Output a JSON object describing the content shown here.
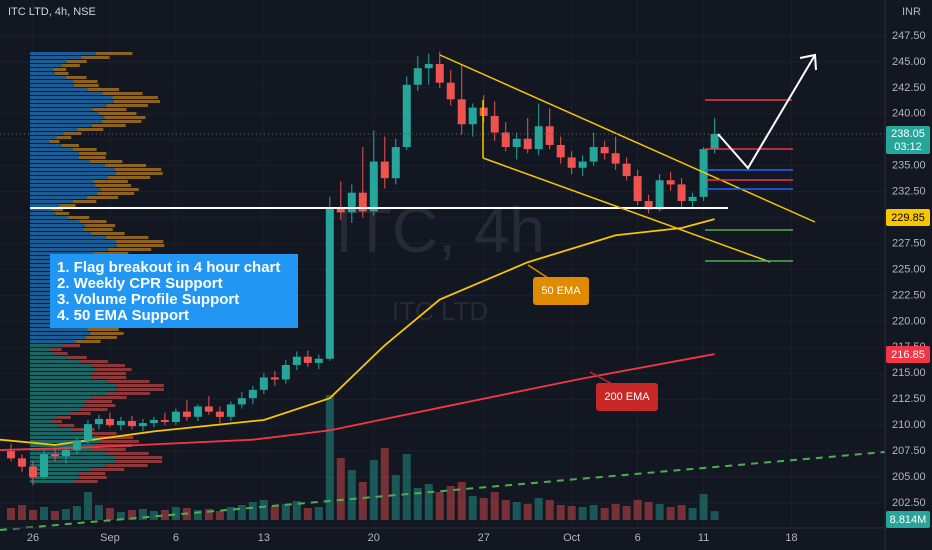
{
  "chart_data": {
    "type": "candlestick",
    "title": "ITC LTD, 4h, NSE",
    "currency": "INR",
    "watermark": "ITC, 4h",
    "watermark_sub": "ITC LTD",
    "annotations": [
      "1. Flag breakout in 4 hour chart",
      "2. Weekly CPR Support",
      "3. Volume Profile Support",
      "4. 50 EMA Support"
    ],
    "countdown": "03:12",
    "up_color": "#26a69a",
    "down_color": "#ef5350",
    "x": [
      0,
      1,
      2,
      3,
      4,
      5,
      6,
      7,
      8,
      9,
      10,
      11,
      12,
      13,
      14,
      15,
      16,
      17,
      18,
      19,
      20,
      21,
      22,
      23,
      24,
      25,
      26,
      27,
      28,
      29,
      30,
      31,
      32,
      33,
      34,
      35,
      36,
      37,
      38,
      39,
      40,
      41,
      42,
      43,
      44,
      45,
      46,
      47,
      48,
      49,
      50,
      51,
      52,
      53,
      54,
      55,
      56,
      57,
      58,
      59,
      60,
      61,
      62,
      63,
      64
    ],
    "open": [
      207.5,
      206.8,
      206,
      205,
      207.2,
      207,
      207.6,
      208.5,
      210.1,
      210.6,
      210,
      210.4,
      209.9,
      210.2,
      210.5,
      210.3,
      211.3,
      210.8,
      211.8,
      211.3,
      210.8,
      212,
      212.6,
      213.4,
      214.6,
      214.4,
      215.8,
      216.6,
      216,
      216.4,
      231,
      230.5,
      232.4,
      230.6,
      235.4,
      233.8,
      236.8,
      242.8,
      244.4,
      244.8,
      243,
      241.4,
      239,
      240.6,
      239.8,
      238.2,
      236.8,
      237.6,
      236.6,
      238.8,
      237,
      235.8,
      234.8,
      235.4,
      236.8,
      236.2,
      235.2,
      234,
      231.6,
      230.8,
      233.6,
      233.2,
      231.6,
      232,
      236.6
    ],
    "high": [
      208.2,
      207.2,
      206.5,
      207.6,
      207.8,
      207.9,
      208.8,
      210.5,
      211,
      211.2,
      210.8,
      210.9,
      210.6,
      210.8,
      211.2,
      211.6,
      212.4,
      212,
      212.8,
      211.8,
      212.3,
      213.2,
      213.8,
      215,
      215.2,
      216.3,
      217.1,
      217.2,
      216.8,
      232,
      233.5,
      233.2,
      236.8,
      238.4,
      237.8,
      237.6,
      243.6,
      245.6,
      245.8,
      246,
      244.2,
      244.8,
      241,
      241.8,
      241.2,
      239.2,
      238.2,
      239.6,
      241,
      240.5,
      237.8,
      236.4,
      236,
      238.2,
      237.4,
      237.8,
      235.8,
      234.6,
      232.2,
      234.2,
      234.4,
      233.8,
      232.4,
      236.8,
      239.6
    ],
    "low": [
      206.5,
      205.5,
      204.2,
      204.8,
      206.5,
      206.3,
      207.2,
      208.2,
      209.6,
      209.8,
      209.5,
      209.6,
      209.4,
      209.8,
      210,
      210,
      210.4,
      210.4,
      211,
      210.2,
      210.4,
      211.6,
      212,
      213,
      213.8,
      214,
      215.3,
      215.6,
      215.4,
      216.2,
      229.8,
      229.5,
      230,
      230.2,
      232.8,
      233.2,
      236.5,
      242.2,
      242.8,
      242.5,
      240.8,
      238,
      237.8,
      239.2,
      237.4,
      236.4,
      235.6,
      236.2,
      236,
      236.6,
      235.2,
      234.2,
      234,
      235,
      235.6,
      234.6,
      233.6,
      231.2,
      230.4,
      230.6,
      232.6,
      231,
      230.8,
      231.6,
      236.2
    ],
    "close": [
      206.8,
      206,
      205,
      207.2,
      207,
      207.6,
      208.5,
      210.1,
      210.6,
      210,
      210.4,
      209.9,
      210.2,
      210.5,
      210.3,
      211.3,
      210.8,
      211.8,
      211.3,
      210.8,
      212,
      212.6,
      213.4,
      214.6,
      214.4,
      215.8,
      216.6,
      216,
      216.4,
      231,
      230.5,
      232.4,
      230.6,
      235.4,
      233.8,
      236.8,
      242.8,
      244.4,
      244.8,
      243,
      241.4,
      239,
      240.6,
      239.8,
      238.2,
      236.8,
      237.6,
      236.6,
      238.8,
      237,
      235.8,
      234.8,
      235.4,
      236.8,
      236.2,
      235.2,
      234,
      231.6,
      230.8,
      233.6,
      233.2,
      231.6,
      232,
      236.6,
      238.05
    ],
    "volume": [
      12,
      15,
      10,
      13,
      9,
      11,
      14,
      28,
      15,
      12,
      8,
      10,
      11,
      9,
      10,
      13,
      12,
      10,
      11,
      9,
      13,
      15,
      18,
      20,
      14,
      16,
      19,
      12,
      13,
      125,
      62,
      50,
      38,
      60,
      72,
      45,
      66,
      32,
      36,
      28,
      34,
      38,
      24,
      22,
      28,
      20,
      18,
      16,
      22,
      20,
      15,
      14,
      13,
      15,
      12,
      16,
      14,
      20,
      18,
      16,
      13,
      15,
      12,
      26,
      8.814
    ],
    "volume_label": "8.814M",
    "series": [
      {
        "name": "50 EMA",
        "color": "#f7c600",
        "x": [
          -1,
          4,
          13,
          23,
          29,
          34,
          39,
          47,
          55,
          61,
          64
        ],
        "values": [
          208.6,
          208.1,
          209.4,
          210.5,
          212.6,
          217.7,
          222.1,
          225.7,
          228.3,
          229.0,
          229.85
        ]
      },
      {
        "name": "200 EMA",
        "color": "#f23645",
        "x": [
          -1,
          8,
          22,
          29,
          40,
          52,
          64
        ],
        "values": [
          207.6,
          207.9,
          208.6,
          209.5,
          211.9,
          214.5,
          216.85
        ]
      }
    ],
    "xlim": [
      -1,
      79.5
    ],
    "ylim": [
      200.86,
      250.97
    ],
    "xticks": [
      {
        "value": 2,
        "label": "26"
      },
      {
        "value": 9,
        "label": "Sep"
      },
      {
        "value": 15,
        "label": "6"
      },
      {
        "value": 23,
        "label": "13"
      },
      {
        "value": 33,
        "label": "20"
      },
      {
        "value": 43,
        "label": "27"
      },
      {
        "value": 51,
        "label": "Oct"
      },
      {
        "value": 57,
        "label": "6"
      },
      {
        "value": 63,
        "label": "11"
      },
      {
        "value": 71,
        "label": "18"
      }
    ],
    "yticks": [
      {
        "value": 202.5,
        "label": "202.50"
      },
      {
        "value": 205,
        "label": "205.00"
      },
      {
        "value": 207.5,
        "label": "207.50"
      },
      {
        "value": 210,
        "label": "210.00"
      },
      {
        "value": 212.5,
        "label": "212.50"
      },
      {
        "value": 215,
        "label": "215.00"
      },
      {
        "value": 217.5,
        "label": "217.50"
      },
      {
        "value": 220,
        "label": "220.00"
      },
      {
        "value": 222.5,
        "label": "222.50"
      },
      {
        "value": 225,
        "label": "225.00"
      },
      {
        "value": 227.5,
        "label": "227.50"
      },
      {
        "value": 230,
        "label": "230.00"
      },
      {
        "value": 232.5,
        "label": "232.50"
      },
      {
        "value": 235,
        "label": "235.00"
      },
      {
        "value": 237.5,
        "label": "237.50"
      },
      {
        "value": 240,
        "label": "240.00"
      },
      {
        "value": 242.5,
        "label": "242.50"
      },
      {
        "value": 245,
        "label": "245.00"
      },
      {
        "value": 247.5,
        "label": "247.50"
      }
    ],
    "grid": true
  }
}
